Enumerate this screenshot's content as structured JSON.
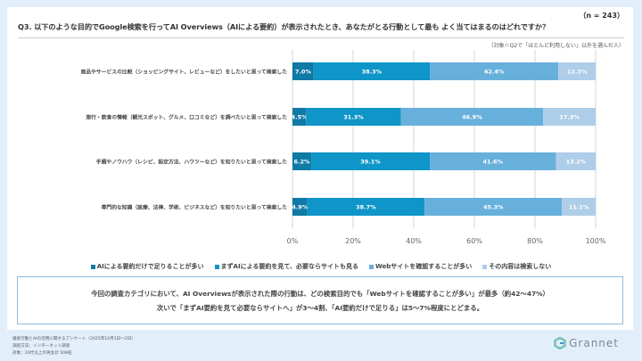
{
  "n_label": "（n = 243）",
  "question": "Q3. 以下のような目的でGoogle検索を行ってAI Overviews（AIによる要約）が表示されたとき、あなたがとる行動として最も よく当てはまるのはどれですか？",
  "target_note": "（対象＝Q2で「ほとんど利用しない」以外を選んだ人）",
  "chart_data": {
    "type": "bar",
    "orientation": "horizontal-stacked-100",
    "categories": [
      "商品やサービスの比較（ショッピングサイト、レビューなど）をしたいと思って検索した",
      "旅行・飲食の情報（観光スポット、グルメ、口コミなど）を調べたいと思って検索した",
      "手順やノウハウ（レシピ、設定方法、ハウツーなど）を知りたいと思って検索した",
      "専門的な知識（医療、法律、学術、ビジネスなど）を知りたいと思って検索した"
    ],
    "series": [
      {
        "name": "AIによる要約だけで足りることが多い",
        "color": "#0e7aa5",
        "values": [
          7.0,
          4.5,
          6.2,
          4.9
        ]
      },
      {
        "name": "まずAIによる要約を見て、必要ならサイトも見る",
        "color": "#0f95c8",
        "values": [
          38.3,
          31.3,
          39.1,
          38.7
        ]
      },
      {
        "name": "Webサイトを確認することが多い",
        "color": "#68b0dc",
        "values": [
          42.4,
          46.9,
          41.6,
          45.3
        ]
      },
      {
        "name": "その内容は検索しない",
        "color": "#aecde8",
        "values": [
          12.3,
          17.3,
          13.2,
          11.1
        ]
      }
    ],
    "xticks": [
      "0%",
      "20%",
      "40%",
      "60%",
      "80%",
      "100%"
    ],
    "xlim": [
      0,
      100
    ],
    "grid": true,
    "legend_position": "bottom"
  },
  "summary": [
    "今回の調査カテゴリにおいて、AI Overviewsが表示された際の行動は、どの検索目的でも「Webサイトを確認することが多い」が最多（約42～47%）",
    "次いで「まずAI要約を見て必要ならサイトへ」が3～4割、「AI要約だけで足りる」は5～7%程度にとどまる。"
  ],
  "footer": [
    "検索行動とAIの活用に関するアンケート（2025年10月1日～2日）",
    "調査方法：インターネット調査",
    "対象：20代以上の男女計 508名"
  ],
  "logo": "Grannet"
}
